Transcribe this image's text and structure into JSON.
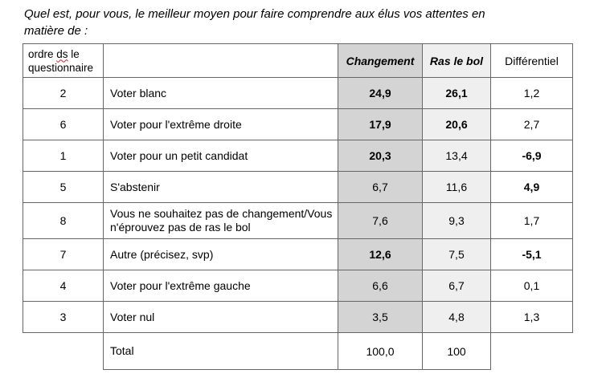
{
  "title": "Quel est, pour vous, le meilleur moyen pour faire comprendre aux élus vos attentes en matière de :",
  "colors": {
    "changement_column_bg": "#d4d4d4",
    "ras_le_bol_column_bg": "#efefef",
    "table_border": "#666666",
    "spellcheck_underline": "#d02020"
  },
  "table": {
    "headers": {
      "ordre_pre": "ordre ",
      "ordre_misspelled": "ds",
      "ordre_post": " le questionnaire",
      "category": "",
      "changement": "Changement",
      "ras_le_bol": "Ras le bol",
      "differentiel": "Différentiel"
    },
    "rows": [
      {
        "ordre": "2",
        "label": "Voter blanc",
        "changement": "24,9",
        "ras_le_bol": "26,1",
        "differentiel": "1,2",
        "bold": [
          "changement",
          "ras_le_bol"
        ]
      },
      {
        "ordre": "6",
        "label": "Voter pour l'extrême droite",
        "changement": "17,9",
        "ras_le_bol": "20,6",
        "differentiel": "2,7",
        "bold": [
          "changement",
          "ras_le_bol"
        ]
      },
      {
        "ordre": "1",
        "label": "Voter pour un petit candidat",
        "changement": "20,3",
        "ras_le_bol": "13,4",
        "differentiel": "-6,9",
        "bold": [
          "changement",
          "differentiel"
        ]
      },
      {
        "ordre": "5",
        "label": "S'abstenir",
        "changement": "6,7",
        "ras_le_bol": "11,6",
        "differentiel": "4,9",
        "bold": [
          "differentiel"
        ]
      },
      {
        "ordre": "8",
        "label": "Vous ne souhaitez pas de changement/Vous n'éprouvez pas de ras le bol",
        "changement": "7,6",
        "ras_le_bol": "9,3",
        "differentiel": "1,7",
        "bold": []
      },
      {
        "ordre": "7",
        "label": "Autre (précisez, svp)",
        "changement": "12,6",
        "ras_le_bol": "7,5",
        "differentiel": "-5,1",
        "bold": [
          "changement",
          "differentiel"
        ]
      },
      {
        "ordre": "4",
        "label": "Voter pour l'extrême gauche",
        "changement": "6,6",
        "ras_le_bol": "6,7",
        "differentiel": "0,1",
        "bold": []
      },
      {
        "ordre": "3",
        "label": "Voter nul",
        "changement": "3,5",
        "ras_le_bol": "4,8",
        "differentiel": "1,3",
        "bold": []
      }
    ],
    "total_row": {
      "label": "Total",
      "changement": "100,0",
      "ras_le_bol": "100"
    }
  }
}
